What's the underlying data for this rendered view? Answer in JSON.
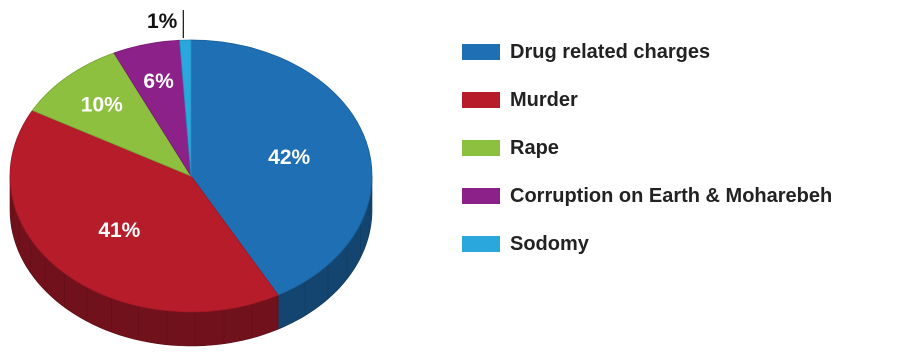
{
  "chart_data": {
    "type": "pie",
    "style": "3d",
    "title": "",
    "categories": [
      "Drug related charges",
      "Murder",
      "Rape",
      "Corruption on Earth & Moharebeh",
      "Sodomy"
    ],
    "values": [
      42,
      41,
      10,
      6,
      1
    ],
    "labels": [
      "42%",
      "41%",
      "10%",
      "6%",
      "1%"
    ],
    "colors": [
      "#1e6fb4",
      "#b71c2b",
      "#8cc03e",
      "#8c2289",
      "#2aa7dc"
    ],
    "legend_placement": "right",
    "unit": "%"
  }
}
